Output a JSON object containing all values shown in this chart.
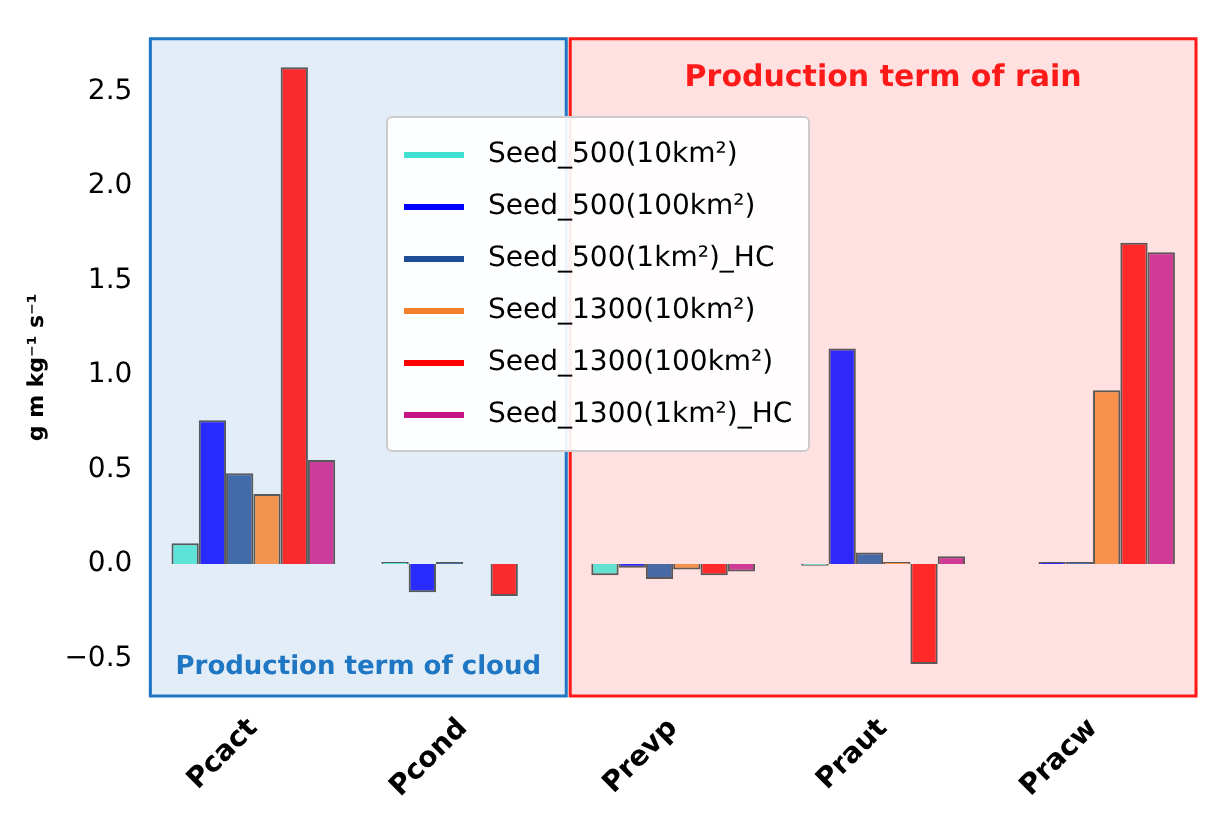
{
  "chart_data": {
    "type": "bar",
    "ylabel": "g m kg⁻¹ s⁻¹",
    "categories": [
      "Pcact",
      "Pcond",
      "Prevp",
      "Praut",
      "Pracw"
    ],
    "series": [
      {
        "name": "Seed_500(10km²)",
        "color": "#40e0d0",
        "values": [
          0.11,
          0.01,
          -0.06,
          -0.01,
          0.0
        ]
      },
      {
        "name": "Seed_500(100km²)",
        "color": "#0000ff",
        "values": [
          0.76,
          -0.15,
          -0.02,
          1.14,
          0.01
        ]
      },
      {
        "name": "Seed_500(1km²)_HC",
        "color": "#1f4e99",
        "values": [
          0.48,
          0.01,
          -0.08,
          0.06,
          0.01
        ]
      },
      {
        "name": "Seed_1300(10km²)",
        "color": "#f57f2a",
        "values": [
          0.37,
          0.0,
          -0.03,
          0.01,
          0.92
        ]
      },
      {
        "name": "Seed_1300(100km²)",
        "color": "#ff0000",
        "values": [
          2.63,
          -0.17,
          -0.06,
          -0.53,
          1.7
        ]
      },
      {
        "name": "Seed_1300(1km²)_HC",
        "color": "#c71585",
        "values": [
          0.55,
          0.0,
          -0.04,
          0.04,
          1.65
        ]
      }
    ],
    "ylim": [
      -0.7,
      2.78
    ],
    "yticks": [
      {
        "value": -0.5,
        "label": "−0.5"
      },
      {
        "value": 0,
        "label": "0.0"
      },
      0.5,
      {
        "value": 1,
        "label": "1.0"
      },
      1.5,
      {
        "value": 2,
        "label": "2.0"
      },
      2.5
    ],
    "grid": false,
    "legend": "top",
    "bands": [
      {
        "axis": "x",
        "from": "Pcact",
        "to": "Pcond",
        "label": "Production term of cloud",
        "color": "#1f77c4"
      },
      {
        "axis": "x",
        "from": "Prevp",
        "to": "Pracw",
        "label": "Production term of rain",
        "color": "#ff1a1a"
      }
    ]
  }
}
